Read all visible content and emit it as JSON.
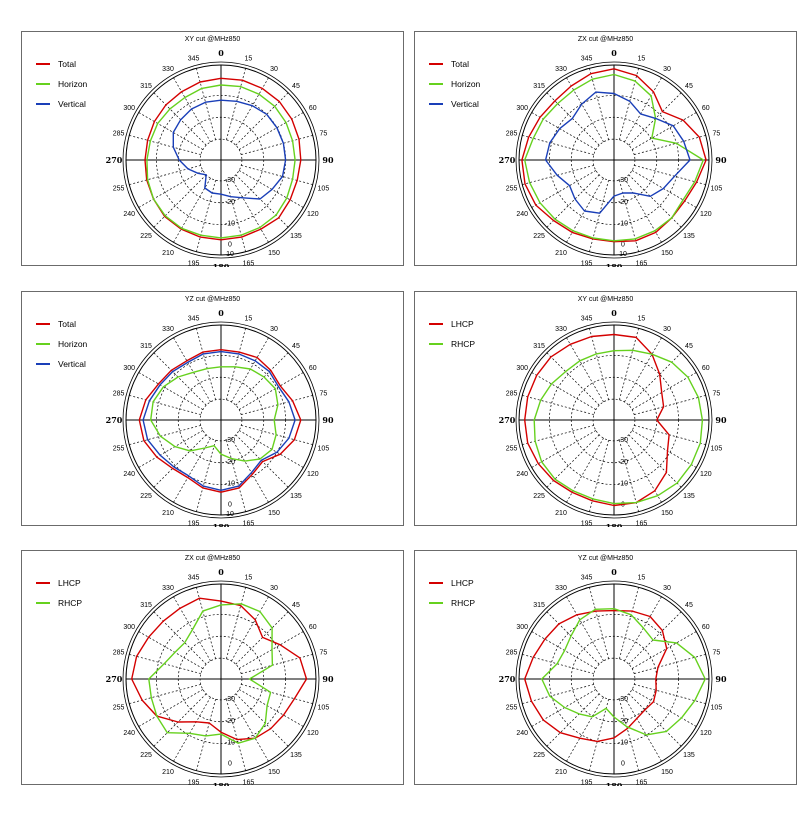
{
  "colors": {
    "red": "#d40000",
    "green": "#66d11e",
    "blue": "#1a3fb8"
  },
  "angle_labels": [
    "0",
    "15",
    "30",
    "45",
    "60",
    "75",
    "90",
    "105",
    "120",
    "135",
    "150",
    "165",
    "180",
    "195",
    "210",
    "225",
    "240",
    "255",
    "270",
    "285",
    "300",
    "315",
    "330",
    "345"
  ],
  "chart_data": [
    {
      "type": "polar",
      "title": "XY cut @MHz850",
      "radial_labels": [
        "-30",
        "-20",
        "-10",
        "0",
        "10"
      ],
      "angle_labels": [
        "0",
        "15",
        "30",
        "45",
        "60",
        "75",
        "90",
        "105",
        "120",
        "135",
        "150",
        "165",
        "180",
        "195",
        "210",
        "225",
        "240",
        "255",
        "270",
        "285",
        "300",
        "315",
        "330",
        "345"
      ],
      "series": [
        {
          "name": "Total",
          "color": "#d40000",
          "r": [
            0.86,
            0.87,
            0.87,
            0.87,
            0.86,
            0.85,
            0.84,
            0.83,
            0.84,
            0.86,
            0.84,
            0.84,
            0.84,
            0.84,
            0.84,
            0.84,
            0.82,
            0.81,
            0.8,
            0.8,
            0.81,
            0.82,
            0.83,
            0.85
          ]
        },
        {
          "name": "Horizon",
          "color": "#66d11e",
          "r": [
            0.79,
            0.8,
            0.8,
            0.8,
            0.79,
            0.78,
            0.78,
            0.78,
            0.8,
            0.82,
            0.82,
            0.82,
            0.82,
            0.82,
            0.83,
            0.83,
            0.82,
            0.8,
            0.78,
            0.77,
            0.77,
            0.76,
            0.76,
            0.78
          ]
        },
        {
          "name": "Vertical",
          "color": "#1a3fb8",
          "r": [
            0.63,
            0.64,
            0.66,
            0.68,
            0.68,
            0.68,
            0.68,
            0.67,
            0.62,
            0.58,
            0.46,
            0.4,
            0.36,
            0.36,
            0.34,
            0.22,
            0.28,
            0.36,
            0.44,
            0.52,
            0.58,
            0.6,
            0.62,
            0.63
          ]
        }
      ]
    },
    {
      "type": "polar",
      "title": "ZX cut @MHz850",
      "radial_labels": [
        "-30",
        "-20",
        "-10",
        "0",
        "10"
      ],
      "angle_labels": [
        "0",
        "15",
        "30",
        "45",
        "60",
        "75",
        "90",
        "105",
        "120",
        "135",
        "150",
        "165",
        "180",
        "195",
        "210",
        "225",
        "240",
        "255",
        "270",
        "285",
        "300",
        "315",
        "330",
        "345"
      ],
      "series": [
        {
          "name": "Total",
          "color": "#d40000",
          "r": [
            0.96,
            0.92,
            0.83,
            0.72,
            0.84,
            0.93,
            0.97,
            0.9,
            0.86,
            0.86,
            0.88,
            0.88,
            0.86,
            0.86,
            0.88,
            0.9,
            0.95,
            0.97,
            0.97,
            0.93,
            0.9,
            0.88,
            0.9,
            0.94
          ]
        },
        {
          "name": "Horizon",
          "color": "#66d11e",
          "r": [
            0.9,
            0.86,
            0.78,
            0.62,
            0.46,
            0.68,
            0.94,
            0.88,
            0.84,
            0.86,
            0.86,
            0.86,
            0.85,
            0.85,
            0.86,
            0.88,
            0.9,
            0.92,
            0.94,
            0.88,
            0.86,
            0.84,
            0.85,
            0.88
          ]
        },
        {
          "name": "Vertical",
          "color": "#1a3fb8",
          "r": [
            0.7,
            0.64,
            0.56,
            0.62,
            0.72,
            0.76,
            0.8,
            0.66,
            0.6,
            0.54,
            0.4,
            0.36,
            0.38,
            0.58,
            0.62,
            0.58,
            0.54,
            0.62,
            0.72,
            0.7,
            0.66,
            0.62,
            0.68,
            0.74
          ]
        }
      ]
    },
    {
      "type": "polar",
      "title": "YZ cut @MHz850",
      "radial_labels": [
        "-30",
        "-20",
        "-10",
        "0",
        "10"
      ],
      "angle_labels": [
        "0",
        "15",
        "30",
        "45",
        "60",
        "75",
        "90",
        "105",
        "120",
        "135",
        "150",
        "165",
        "180",
        "195",
        "210",
        "225",
        "240",
        "255",
        "270",
        "285",
        "300",
        "315",
        "330",
        "345"
      ],
      "series": [
        {
          "name": "Total",
          "color": "#d40000",
          "r": [
            0.74,
            0.74,
            0.76,
            0.74,
            0.72,
            0.78,
            0.84,
            0.8,
            0.72,
            0.62,
            0.66,
            0.74,
            0.76,
            0.74,
            0.7,
            0.72,
            0.78,
            0.84,
            0.86,
            0.82,
            0.76,
            0.74,
            0.72,
            0.74
          ]
        },
        {
          "name": "Horizon",
          "color": "#66d11e",
          "r": [
            0.56,
            0.58,
            0.62,
            0.64,
            0.66,
            0.62,
            0.56,
            0.6,
            0.62,
            0.58,
            0.5,
            0.42,
            0.36,
            0.28,
            0.34,
            0.46,
            0.56,
            0.66,
            0.74,
            0.74,
            0.7,
            0.64,
            0.58,
            0.56
          ]
        },
        {
          "name": "Vertical",
          "color": "#1a3fb8",
          "r": [
            0.72,
            0.72,
            0.72,
            0.72,
            0.7,
            0.74,
            0.78,
            0.74,
            0.68,
            0.6,
            0.64,
            0.72,
            0.74,
            0.72,
            0.68,
            0.7,
            0.74,
            0.8,
            0.82,
            0.78,
            0.74,
            0.72,
            0.7,
            0.72
          ]
        }
      ]
    },
    {
      "type": "polar",
      "title": "XY cut @MHz850",
      "radial_labels": [
        "-30",
        "-20",
        "-10",
        "0"
      ],
      "angle_labels": [
        "0",
        "15",
        "30",
        "45",
        "60",
        "75",
        "90",
        "105",
        "120",
        "135",
        "150",
        "165",
        "180",
        "195",
        "210",
        "225",
        "240",
        "255",
        "270",
        "285",
        "300",
        "315",
        "330",
        "345"
      ],
      "series": [
        {
          "name": "LHCP",
          "color": "#d40000",
          "r": [
            0.9,
            0.9,
            0.8,
            0.68,
            0.58,
            0.54,
            0.45,
            0.6,
            0.65,
            0.78,
            0.86,
            0.9,
            0.9,
            0.88,
            0.88,
            0.9,
            0.92,
            0.94,
            0.94,
            0.94,
            0.94,
            0.94,
            0.92,
            0.91
          ]
        },
        {
          "name": "RHCP",
          "color": "#66d11e",
          "r": [
            0.73,
            0.76,
            0.8,
            0.86,
            0.9,
            0.92,
            0.93,
            0.94,
            0.94,
            0.94,
            0.92,
            0.9,
            0.88,
            0.86,
            0.86,
            0.88,
            0.88,
            0.86,
            0.84,
            0.8,
            0.76,
            0.72,
            0.72,
            0.72
          ]
        }
      ]
    },
    {
      "type": "polar",
      "title": "ZX cut @MHz850",
      "radial_labels": [
        "-30",
        "-20",
        "-10",
        "0"
      ],
      "angle_labels": [
        "0",
        "15",
        "30",
        "45",
        "60",
        "75",
        "90",
        "105",
        "120",
        "135",
        "150",
        "165",
        "180",
        "195",
        "210",
        "225",
        "240",
        "255",
        "270",
        "285",
        "300",
        "315",
        "330",
        "345"
      ],
      "series": [
        {
          "name": "LHCP",
          "color": "#d40000",
          "r": [
            0.82,
            0.8,
            0.72,
            0.62,
            0.72,
            0.86,
            0.9,
            0.8,
            0.76,
            0.74,
            0.72,
            0.66,
            0.56,
            0.48,
            0.52,
            0.64,
            0.78,
            0.86,
            0.94,
            0.92,
            0.88,
            0.86,
            0.86,
            0.88
          ]
        },
        {
          "name": "RHCP",
          "color": "#66d11e",
          "r": [
            0.78,
            0.82,
            0.82,
            0.76,
            0.62,
            0.56,
            0.3,
            0.54,
            0.56,
            0.66,
            0.72,
            0.7,
            0.58,
            0.62,
            0.66,
            0.8,
            0.78,
            0.76,
            0.76,
            0.62,
            0.56,
            0.54,
            0.6,
            0.74
          ]
        }
      ]
    },
    {
      "type": "polar",
      "title": "YZ cut @MHz850",
      "radial_labels": [
        "-30",
        "-20",
        "-10",
        "0"
      ],
      "angle_labels": [
        "0",
        "15",
        "30",
        "45",
        "60",
        "75",
        "90",
        "105",
        "120",
        "135",
        "150",
        "165",
        "180",
        "195",
        "210",
        "225",
        "240",
        "255",
        "270",
        "285",
        "300",
        "315",
        "330",
        "345"
      ],
      "series": [
        {
          "name": "LHCP",
          "color": "#d40000",
          "r": [
            0.72,
            0.74,
            0.76,
            0.72,
            0.64,
            0.48,
            0.44,
            0.46,
            0.48,
            0.46,
            0.48,
            0.54,
            0.62,
            0.68,
            0.72,
            0.8,
            0.86,
            0.9,
            0.94,
            0.88,
            0.84,
            0.82,
            0.78,
            0.74
          ]
        },
        {
          "name": "RHCP",
          "color": "#66d11e",
          "r": [
            0.74,
            0.7,
            0.62,
            0.58,
            0.76,
            0.88,
            0.96,
            0.88,
            0.82,
            0.78,
            0.68,
            0.52,
            0.4,
            0.32,
            0.46,
            0.52,
            0.6,
            0.7,
            0.76,
            0.62,
            0.6,
            0.64,
            0.72,
            0.76
          ]
        }
      ]
    }
  ]
}
